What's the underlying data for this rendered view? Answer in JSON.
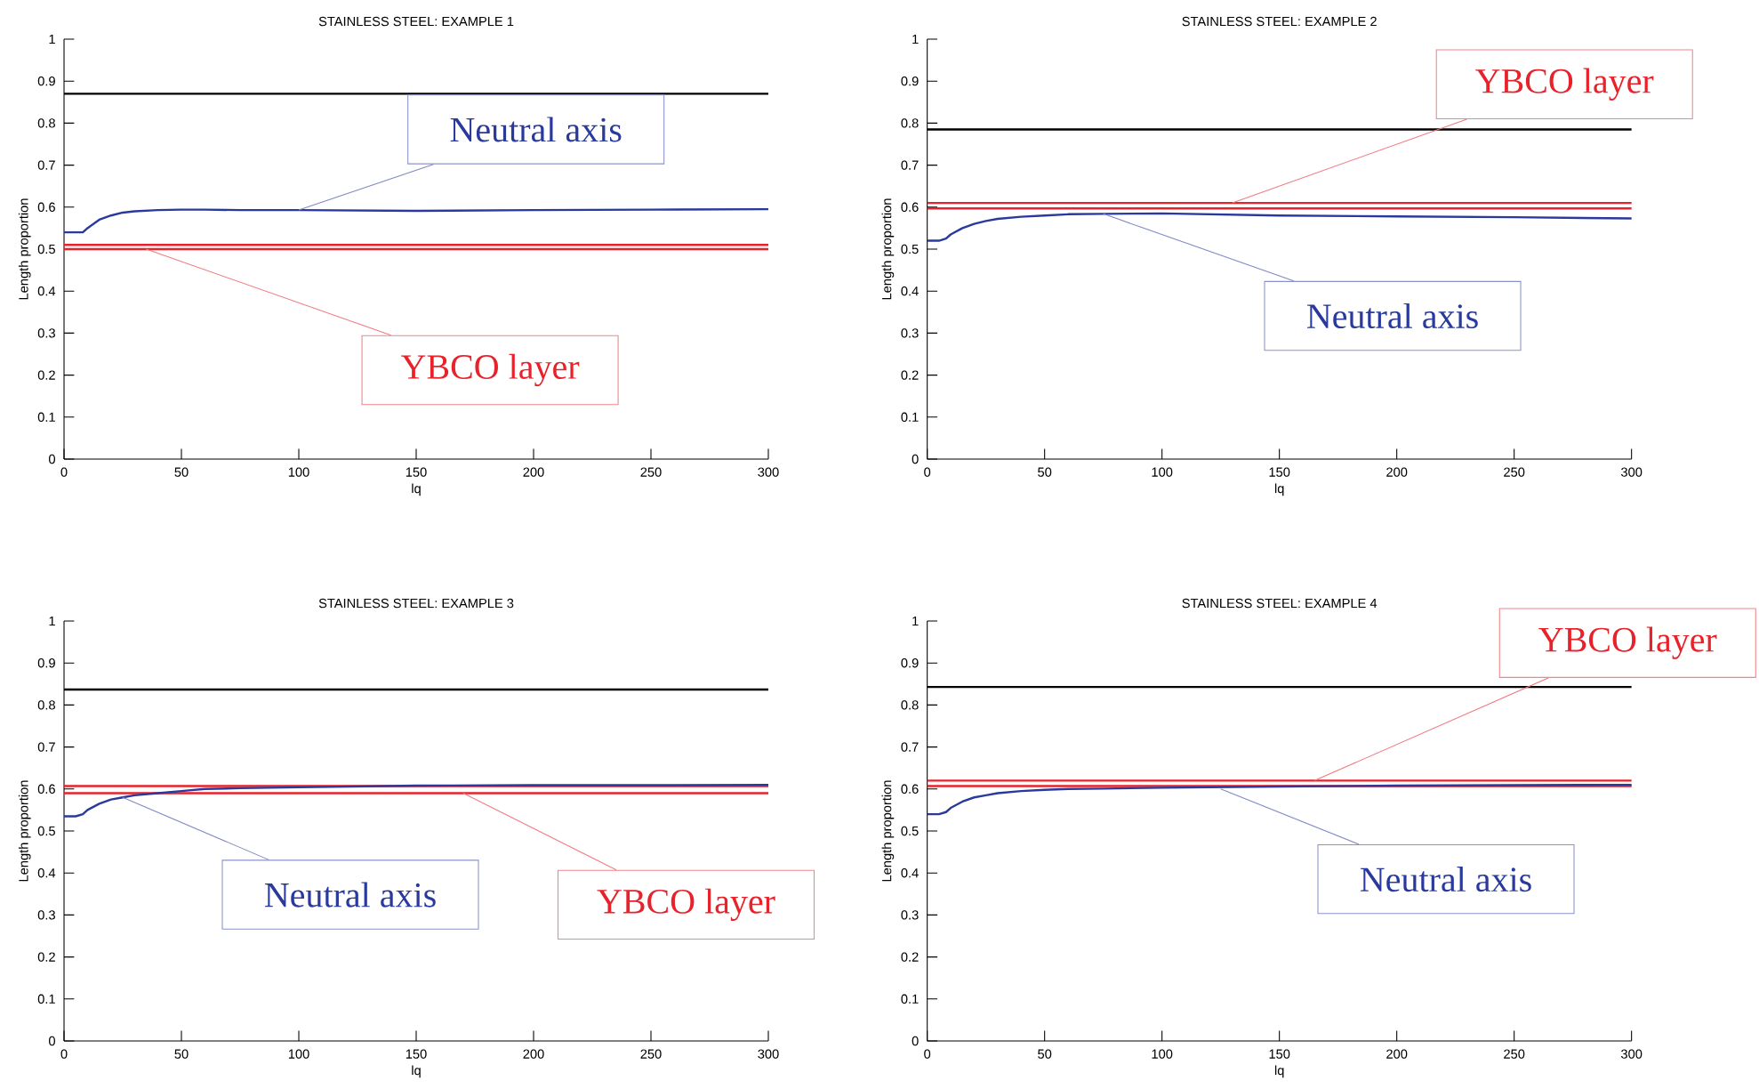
{
  "chart_data": [
    {
      "type": "line",
      "title": "STAINLESS STEEL: EXAMPLE 1",
      "xlabel": "lq",
      "ylabel": "Length proportion",
      "x": [
        0,
        5,
        8,
        10,
        15,
        20,
        25,
        30,
        40,
        50,
        60,
        75,
        100,
        150,
        200,
        250,
        300
      ],
      "series": [
        {
          "color": "#000000",
          "values": [
            0.87,
            0.87,
            0.87,
            0.87,
            0.87,
            0.87,
            0.87,
            0.87,
            0.87,
            0.87,
            0.87,
            0.87,
            0.87,
            0.87,
            0.87,
            0.87,
            0.87
          ]
        },
        {
          "color": "#e8222b",
          "values": [
            0.51,
            0.51,
            0.51,
            0.51,
            0.51,
            0.51,
            0.51,
            0.51,
            0.51,
            0.51,
            0.51,
            0.51,
            0.51,
            0.51,
            0.51,
            0.51,
            0.51
          ]
        },
        {
          "color": "#e8222b",
          "values": [
            0.5,
            0.5,
            0.5,
            0.5,
            0.5,
            0.5,
            0.5,
            0.5,
            0.5,
            0.5,
            0.5,
            0.5,
            0.5,
            0.5,
            0.5,
            0.5,
            0.5
          ]
        },
        {
          "color": "#2a3a9c",
          "values": [
            0.54,
            0.54,
            0.54,
            0.55,
            0.57,
            0.58,
            0.587,
            0.59,
            0.593,
            0.594,
            0.594,
            0.593,
            0.593,
            0.591,
            0.593,
            0.594,
            0.595
          ]
        }
      ],
      "annotations": [
        {
          "text": "Neutral axis",
          "x": 100,
          "y": 0.593
        },
        {
          "text": "YBCO layer",
          "x": 35,
          "y": 0.5
        }
      ],
      "xlim": [
        0,
        300
      ],
      "ylim": [
        0,
        1
      ],
      "xticks": [
        0,
        50,
        100,
        150,
        200,
        250,
        300
      ],
      "yticks": [
        0,
        0.1,
        0.2,
        0.3,
        0.4,
        0.5,
        0.6,
        0.7,
        0.8,
        0.9,
        1
      ],
      "grid": false,
      "legend": false,
      "marker": "none",
      "line_style": "solid"
    },
    {
      "type": "line",
      "title": "STAINLESS STEEL: EXAMPLE 2",
      "xlabel": "lq",
      "ylabel": "Length proportion",
      "x": [
        0,
        5,
        8,
        10,
        15,
        20,
        25,
        30,
        40,
        50,
        60,
        75,
        100,
        150,
        200,
        250,
        300
      ],
      "series": [
        {
          "color": "#000000",
          "values": [
            0.785,
            0.785,
            0.785,
            0.785,
            0.785,
            0.785,
            0.785,
            0.785,
            0.785,
            0.785,
            0.785,
            0.785,
            0.785,
            0.785,
            0.785,
            0.785,
            0.785
          ]
        },
        {
          "color": "#e8222b",
          "values": [
            0.61,
            0.61,
            0.61,
            0.61,
            0.61,
            0.61,
            0.61,
            0.61,
            0.61,
            0.61,
            0.61,
            0.61,
            0.61,
            0.61,
            0.61,
            0.61,
            0.61
          ]
        },
        {
          "color": "#e8222b",
          "values": [
            0.597,
            0.597,
            0.597,
            0.597,
            0.597,
            0.597,
            0.597,
            0.597,
            0.597,
            0.597,
            0.597,
            0.597,
            0.597,
            0.597,
            0.597,
            0.597,
            0.597
          ]
        },
        {
          "color": "#2a3a9c",
          "values": [
            0.52,
            0.52,
            0.525,
            0.535,
            0.55,
            0.56,
            0.567,
            0.572,
            0.577,
            0.58,
            0.583,
            0.584,
            0.585,
            0.58,
            0.578,
            0.576,
            0.573
          ]
        }
      ],
      "annotations": [
        {
          "text": "YBCO layer",
          "x": 130,
          "y": 0.61
        },
        {
          "text": "Neutral axis",
          "x": 75,
          "y": 0.584
        }
      ],
      "xlim": [
        0,
        300
      ],
      "ylim": [
        0,
        1
      ],
      "xticks": [
        0,
        50,
        100,
        150,
        200,
        250,
        300
      ],
      "yticks": [
        0,
        0.1,
        0.2,
        0.3,
        0.4,
        0.5,
        0.6,
        0.7,
        0.8,
        0.9,
        1
      ],
      "grid": false,
      "legend": false,
      "marker": "none",
      "line_style": "solid"
    },
    {
      "type": "line",
      "title": "STAINLESS STEEL: EXAMPLE 3",
      "xlabel": "lq",
      "ylabel": "Length proportion",
      "x": [
        0,
        5,
        8,
        10,
        15,
        20,
        25,
        30,
        40,
        50,
        60,
        75,
        100,
        150,
        200,
        250,
        300
      ],
      "series": [
        {
          "color": "#000000",
          "values": [
            0.837,
            0.837,
            0.837,
            0.837,
            0.837,
            0.837,
            0.837,
            0.837,
            0.837,
            0.837,
            0.837,
            0.837,
            0.837,
            0.837,
            0.837,
            0.837,
            0.837
          ]
        },
        {
          "color": "#e8222b",
          "values": [
            0.607,
            0.607,
            0.607,
            0.607,
            0.607,
            0.607,
            0.607,
            0.607,
            0.607,
            0.607,
            0.607,
            0.607,
            0.607,
            0.607,
            0.607,
            0.607,
            0.607
          ]
        },
        {
          "color": "#e8222b",
          "values": [
            0.59,
            0.59,
            0.59,
            0.59,
            0.59,
            0.59,
            0.59,
            0.59,
            0.59,
            0.59,
            0.59,
            0.59,
            0.59,
            0.59,
            0.59,
            0.59,
            0.59
          ]
        },
        {
          "color": "#2a3a9c",
          "values": [
            0.535,
            0.535,
            0.54,
            0.55,
            0.565,
            0.575,
            0.58,
            0.585,
            0.59,
            0.595,
            0.6,
            0.602,
            0.604,
            0.608,
            0.609,
            0.609,
            0.61
          ]
        }
      ],
      "annotations": [
        {
          "text": "Neutral axis",
          "x": 25,
          "y": 0.58
        },
        {
          "text": "YBCO layer",
          "x": 170,
          "y": 0.59
        }
      ],
      "xlim": [
        0,
        300
      ],
      "ylim": [
        0,
        1
      ],
      "xticks": [
        0,
        50,
        100,
        150,
        200,
        250,
        300
      ],
      "yticks": [
        0,
        0.1,
        0.2,
        0.3,
        0.4,
        0.5,
        0.6,
        0.7,
        0.8,
        0.9,
        1
      ],
      "grid": false,
      "legend": false,
      "marker": "none",
      "line_style": "solid"
    },
    {
      "type": "line",
      "title": "STAINLESS STEEL: EXAMPLE 4",
      "xlabel": "lq",
      "ylabel": "Length proportion",
      "x": [
        0,
        5,
        8,
        10,
        15,
        20,
        25,
        30,
        40,
        50,
        60,
        75,
        100,
        150,
        200,
        250,
        300
      ],
      "series": [
        {
          "color": "#000000",
          "values": [
            0.843,
            0.843,
            0.843,
            0.843,
            0.843,
            0.843,
            0.843,
            0.843,
            0.843,
            0.843,
            0.843,
            0.843,
            0.843,
            0.843,
            0.843,
            0.843,
            0.843
          ]
        },
        {
          "color": "#e8222b",
          "values": [
            0.62,
            0.62,
            0.62,
            0.62,
            0.62,
            0.62,
            0.62,
            0.62,
            0.62,
            0.62,
            0.62,
            0.62,
            0.62,
            0.62,
            0.62,
            0.62,
            0.62
          ]
        },
        {
          "color": "#e8222b",
          "values": [
            0.607,
            0.607,
            0.607,
            0.607,
            0.607,
            0.607,
            0.607,
            0.607,
            0.607,
            0.607,
            0.607,
            0.607,
            0.607,
            0.607,
            0.607,
            0.607,
            0.607
          ]
        },
        {
          "color": "#2a3a9c",
          "values": [
            0.54,
            0.54,
            0.545,
            0.555,
            0.57,
            0.58,
            0.585,
            0.59,
            0.595,
            0.598,
            0.6,
            0.601,
            0.603,
            0.606,
            0.608,
            0.609,
            0.61
          ]
        }
      ],
      "annotations": [
        {
          "text": "YBCO layer",
          "x": 165,
          "y": 0.62
        },
        {
          "text": "Neutral axis",
          "x": 125,
          "y": 0.6
        }
      ],
      "xlim": [
        0,
        300
      ],
      "ylim": [
        0,
        1
      ],
      "xticks": [
        0,
        50,
        100,
        150,
        200,
        250,
        300
      ],
      "yticks": [
        0,
        0.1,
        0.2,
        0.3,
        0.4,
        0.5,
        0.6,
        0.7,
        0.8,
        0.9,
        1
      ],
      "grid": false,
      "legend": false,
      "marker": "none",
      "line_style": "solid"
    }
  ]
}
